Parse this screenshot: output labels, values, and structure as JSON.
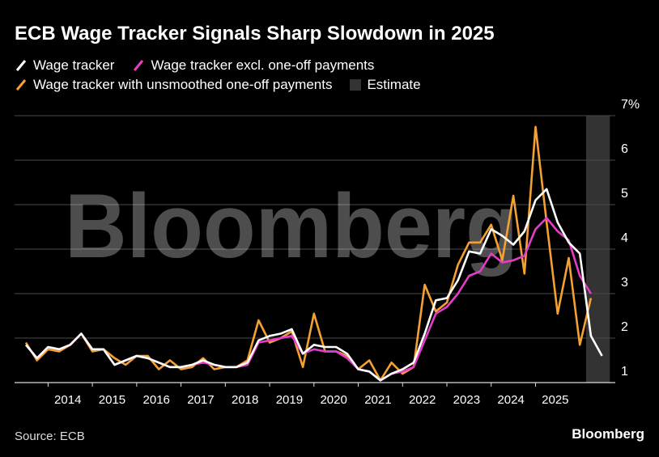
{
  "title": "ECB Wage Tracker Signals Sharp Slowdown in 2025",
  "source": "Source: ECB",
  "brand": "Bloomberg",
  "watermark": "Bloomberg",
  "colors": {
    "white_series": "#ffffff",
    "magenta_series": "#e63cc8",
    "orange_series": "#f5a033",
    "estimate_band": "#333333",
    "grid": "#4a4a4a",
    "background": "#000000"
  },
  "legend": [
    {
      "label": "Wage tracker",
      "color": "#ffffff",
      "kind": "line"
    },
    {
      "label": "Wage tracker excl. one-off payments",
      "color": "#e63cc8",
      "kind": "line"
    },
    {
      "label": "Wage tracker with unsmoothed one-off payments",
      "color": "#f5a033",
      "kind": "line"
    },
    {
      "label": "Estimate",
      "color": "#333333",
      "kind": "band"
    }
  ],
  "chart_data": {
    "type": "line",
    "title": "ECB Wage Tracker Signals Sharp Slowdown in 2025",
    "xlabel": "",
    "ylabel": "%",
    "xlim": [
      2013.0,
      2026.3
    ],
    "ylim": [
      1,
      7
    ],
    "yticks": [
      1,
      2,
      3,
      4,
      5,
      6,
      7
    ],
    "ytick_labels": [
      "1",
      "2",
      "3",
      "4",
      "5",
      "6",
      "7%"
    ],
    "xticks": [
      2014,
      2015,
      2016,
      2017,
      2018,
      2019,
      2020,
      2021,
      2022,
      2023,
      2024,
      2025
    ],
    "xtick_labels": [
      "2014",
      "2015",
      "2016",
      "2017",
      "2018",
      "2019",
      "2020",
      "2021",
      "2022",
      "2023",
      "2024",
      "2025"
    ],
    "estimate_range": [
      2025.75,
      2026.25
    ],
    "x": [
      2013.0,
      2013.25,
      2013.5,
      2013.75,
      2014.0,
      2014.25,
      2014.5,
      2014.75,
      2015.0,
      2015.25,
      2015.5,
      2015.75,
      2016.0,
      2016.25,
      2016.5,
      2016.75,
      2017.0,
      2017.25,
      2017.5,
      2017.75,
      2018.0,
      2018.25,
      2018.5,
      2018.75,
      2019.0,
      2019.25,
      2019.5,
      2019.75,
      2020.0,
      2020.25,
      2020.5,
      2020.75,
      2021.0,
      2021.25,
      2021.5,
      2021.75,
      2022.0,
      2022.25,
      2022.5,
      2022.75,
      2023.0,
      2023.25,
      2023.5,
      2023.75,
      2024.0,
      2024.25,
      2024.5,
      2024.75,
      2025.0,
      2025.25,
      2025.5,
      2025.75,
      2026.0,
      2026.25
    ],
    "series": [
      {
        "name": "Wage tracker",
        "color": "#ffffff",
        "values": [
          1.85,
          1.55,
          1.8,
          1.75,
          1.85,
          2.1,
          1.75,
          1.75,
          1.4,
          1.5,
          1.6,
          1.55,
          1.45,
          1.35,
          1.35,
          1.4,
          1.5,
          1.4,
          1.35,
          1.35,
          1.45,
          1.95,
          2.05,
          2.1,
          2.2,
          1.65,
          1.85,
          1.8,
          1.8,
          1.65,
          1.3,
          1.25,
          1.05,
          1.2,
          1.3,
          1.45,
          2.1,
          2.85,
          2.9,
          3.3,
          3.95,
          3.9,
          4.45,
          4.3,
          4.1,
          4.4,
          5.1,
          5.35,
          4.6,
          4.15,
          3.9,
          2.05,
          1.6,
          null
        ]
      },
      {
        "name": "Wage tracker excl. one-off payments",
        "color": "#e63cc8",
        "values": [
          1.85,
          1.55,
          1.8,
          1.75,
          1.85,
          2.1,
          1.75,
          1.75,
          1.4,
          1.5,
          1.6,
          1.55,
          1.45,
          1.35,
          1.35,
          1.4,
          1.45,
          1.4,
          1.35,
          1.35,
          1.4,
          1.9,
          1.95,
          2.0,
          2.05,
          1.65,
          1.75,
          1.7,
          1.7,
          1.55,
          1.3,
          1.25,
          1.05,
          1.2,
          1.25,
          1.35,
          1.95,
          2.55,
          2.7,
          3.0,
          3.4,
          3.5,
          3.9,
          3.7,
          3.75,
          3.85,
          4.45,
          4.7,
          4.4,
          4.2,
          3.4,
          3.0,
          null,
          null
        ]
      },
      {
        "name": "Wage tracker with unsmoothed one-off payments",
        "color": "#f5a033",
        "values": [
          1.9,
          1.5,
          1.75,
          1.7,
          1.85,
          2.1,
          1.7,
          1.75,
          1.55,
          1.4,
          1.6,
          1.6,
          1.3,
          1.5,
          1.3,
          1.35,
          1.55,
          1.3,
          1.35,
          1.35,
          1.5,
          2.4,
          1.9,
          2.0,
          2.15,
          1.35,
          2.55,
          1.7,
          1.7,
          1.6,
          1.3,
          1.5,
          1.05,
          1.45,
          1.2,
          1.35,
          3.2,
          2.6,
          2.8,
          3.65,
          4.15,
          4.15,
          4.55,
          3.75,
          5.2,
          3.45,
          6.75,
          4.6,
          2.55,
          3.8,
          1.85,
          2.9,
          null,
          null
        ]
      }
    ]
  }
}
